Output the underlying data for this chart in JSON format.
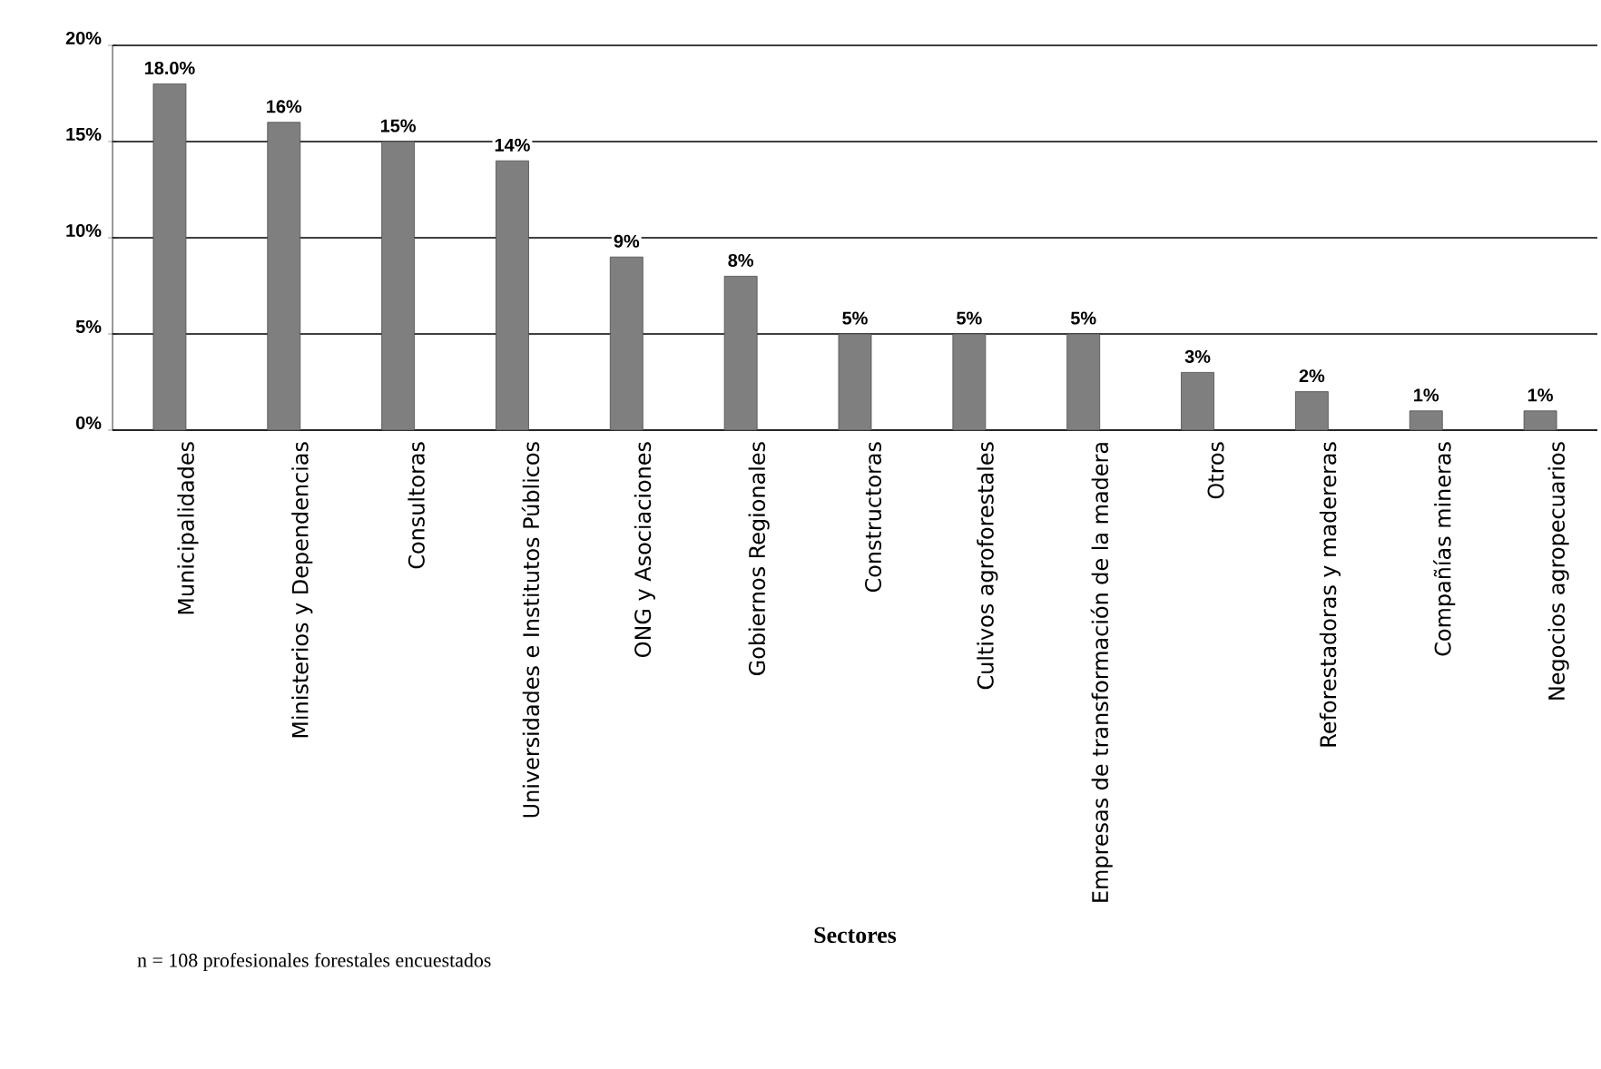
{
  "chart_data": {
    "type": "bar",
    "xlabel": "Sectores",
    "categories": [
      "Municipalidades",
      "Ministerios y Dependencias",
      "Consultoras",
      "Universidades e Institutos Públicos",
      "ONG y Asociaciones",
      "Gobiernos Regionales",
      "Constructoras",
      "Cultivos agroforestales",
      "Empresas de transformación de la madera",
      "Otros",
      "Reforestadoras y madereras",
      "Compañías mineras",
      "Negocios agropecuarios"
    ],
    "values": [
      18.0,
      16,
      15,
      14,
      9,
      8,
      5,
      5,
      5,
      3,
      2,
      1,
      1
    ],
    "value_labels": [
      "18.0%",
      "16%",
      "15%",
      "14%",
      "9%",
      "8%",
      "5%",
      "5%",
      "5%",
      "3%",
      "2%",
      "1%",
      "1%"
    ],
    "color": "#7f7f7f",
    "ylim": [
      0,
      20
    ],
    "yticks": [
      {
        "value": 0,
        "label": "0%"
      },
      {
        "value": 5,
        "label": "5%"
      },
      {
        "value": 10,
        "label": "10%"
      },
      {
        "value": 15,
        "label": "15%"
      },
      {
        "value": 20,
        "label": "20%"
      }
    ],
    "grid": "y",
    "annotations": [
      "n = 108 profesionales forestales encuestados"
    ]
  }
}
